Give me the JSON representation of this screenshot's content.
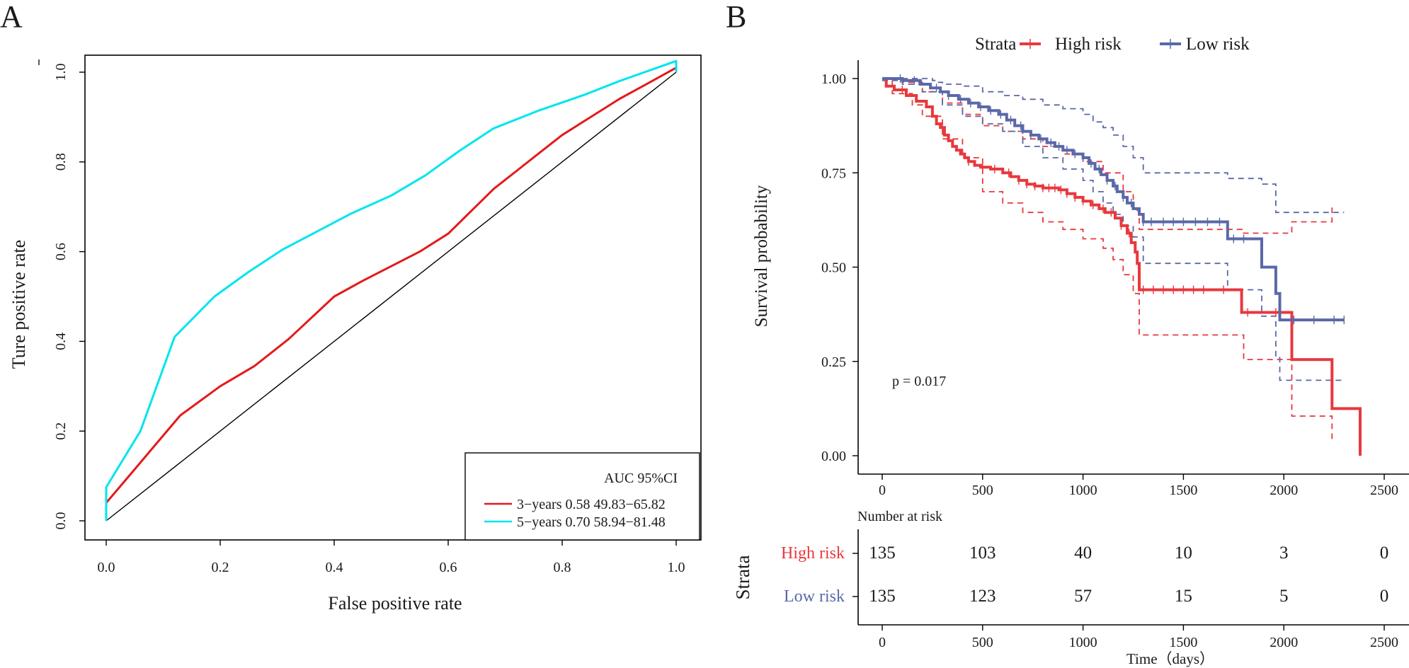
{
  "panel_a": {
    "label": "A",
    "chart_data": {
      "type": "line",
      "title": "",
      "xlabel": "False positive rate",
      "ylabel": "Ture positive rate",
      "xlim": [
        0,
        1
      ],
      "ylim": [
        0,
        1
      ],
      "xticks": [
        "0.0",
        "0.2",
        "0.4",
        "0.6",
        "0.8",
        "1.0"
      ],
      "yticks": [
        "0.0",
        "0.2",
        "0.4",
        "0.6",
        "0.8",
        "1.0"
      ],
      "legend": {
        "title": "AUC 95%CI",
        "entries": [
          "3−years 0.58 49.83−65.82",
          "5−years 0.70 58.94−81.48"
        ],
        "position": "bottom-right"
      },
      "reference_line": [
        [
          0,
          0
        ],
        [
          1,
          1
        ]
      ],
      "series": [
        {
          "name": "3-years",
          "color": "#e31a1c",
          "points": [
            [
              0,
              0.01
            ],
            [
              0,
              0.04
            ],
            [
              0.05,
              0.115
            ],
            [
              0.1,
              0.19
            ],
            [
              0.13,
              0.235
            ],
            [
              0.2,
              0.3
            ],
            [
              0.26,
              0.345
            ],
            [
              0.32,
              0.405
            ],
            [
              0.4,
              0.5
            ],
            [
              0.45,
              0.535
            ],
            [
              0.55,
              0.6
            ],
            [
              0.6,
              0.64
            ],
            [
              0.68,
              0.74
            ],
            [
              0.72,
              0.78
            ],
            [
              0.76,
              0.82
            ],
            [
              0.8,
              0.86
            ],
            [
              0.85,
              0.9
            ],
            [
              0.9,
              0.94
            ],
            [
              0.95,
              0.975
            ],
            [
              1,
              1.01
            ]
          ]
        },
        {
          "name": "5-years",
          "color": "#00e5ee",
          "points": [
            [
              0,
              0
            ],
            [
              0,
              0.075
            ],
            [
              0.06,
              0.2
            ],
            [
              0.12,
              0.41
            ],
            [
              0.19,
              0.5
            ],
            [
              0.25,
              0.555
            ],
            [
              0.31,
              0.605
            ],
            [
              0.37,
              0.645
            ],
            [
              0.43,
              0.685
            ],
            [
              0.5,
              0.725
            ],
            [
              0.56,
              0.77
            ],
            [
              0.62,
              0.825
            ],
            [
              0.68,
              0.875
            ],
            [
              0.76,
              0.915
            ],
            [
              0.84,
              0.95
            ],
            [
              0.9,
              0.98
            ],
            [
              1,
              1.025
            ],
            [
              1,
              1.0
            ]
          ]
        }
      ]
    }
  },
  "panel_b": {
    "label": "B",
    "chart_data": {
      "type": "line",
      "subtype": "kaplan-meier",
      "ylabel": "Survival probability",
      "xlabel": "Time（days）",
      "xlim": [
        -120,
        2550
      ],
      "ylim": [
        0,
        1
      ],
      "xticks": [
        0,
        500,
        1000,
        1500,
        2000,
        2500
      ],
      "yticks": [
        "0.00",
        "0.25",
        "0.50",
        "0.75",
        "1.00"
      ],
      "legend": {
        "title": "Strata",
        "entries": [
          "High risk",
          "Low risk"
        ],
        "position": "top"
      },
      "annotation": "p = 0.017",
      "series": [
        {
          "name": "High risk",
          "color": "#e8383d",
          "steps": [
            [
              0,
              1.0
            ],
            [
              20,
              0.98
            ],
            [
              60,
              0.97
            ],
            [
              120,
              0.955
            ],
            [
              170,
              0.94
            ],
            [
              220,
              0.925
            ],
            [
              250,
              0.9
            ],
            [
              270,
              0.88
            ],
            [
              290,
              0.87
            ],
            [
              310,
              0.85
            ],
            [
              330,
              0.835
            ],
            [
              350,
              0.82
            ],
            [
              370,
              0.81
            ],
            [
              390,
              0.8
            ],
            [
              410,
              0.79
            ],
            [
              430,
              0.78
            ],
            [
              460,
              0.77
            ],
            [
              490,
              0.765
            ],
            [
              540,
              0.76
            ],
            [
              600,
              0.75
            ],
            [
              640,
              0.74
            ],
            [
              680,
              0.73
            ],
            [
              720,
              0.72
            ],
            [
              760,
              0.715
            ],
            [
              800,
              0.71
            ],
            [
              880,
              0.705
            ],
            [
              920,
              0.695
            ],
            [
              960,
              0.685
            ],
            [
              1000,
              0.675
            ],
            [
              1040,
              0.665
            ],
            [
              1080,
              0.655
            ],
            [
              1110,
              0.645
            ],
            [
              1160,
              0.63
            ],
            [
              1190,
              0.61
            ],
            [
              1220,
              0.59
            ],
            [
              1240,
              0.565
            ],
            [
              1260,
              0.54
            ],
            [
              1270,
              0.51
            ],
            [
              1280,
              0.44
            ],
            [
              1790,
              0.38
            ],
            [
              2040,
              0.255
            ],
            [
              2240,
              0.125
            ],
            [
              2380,
              0.0
            ]
          ],
          "end_x": 2380,
          "censor_x": [
            100,
            300,
            430,
            500,
            560,
            630,
            680,
            720,
            760,
            800,
            830,
            860,
            890,
            920,
            960,
            1000,
            1050,
            1100,
            1140,
            1190,
            1230,
            1300,
            1350,
            1400,
            1450,
            1500,
            1550,
            1600,
            1700,
            1820,
            1960
          ],
          "upper_ci": [
            [
              0,
              1.0
            ],
            [
              100,
              0.99
            ],
            [
              200,
              0.965
            ],
            [
              300,
              0.935
            ],
            [
              400,
              0.905
            ],
            [
              500,
              0.875
            ],
            [
              600,
              0.86
            ],
            [
              700,
              0.84
            ],
            [
              800,
              0.82
            ],
            [
              900,
              0.8
            ],
            [
              1000,
              0.78
            ],
            [
              1100,
              0.75
            ],
            [
              1200,
              0.7
            ],
            [
              1250,
              0.65
            ],
            [
              1280,
              0.6
            ],
            [
              1800,
              0.59
            ],
            [
              2040,
              0.62
            ],
            [
              2240,
              0.66
            ]
          ],
          "lower_ci": [
            [
              0,
              0.995
            ],
            [
              50,
              0.96
            ],
            [
              150,
              0.93
            ],
            [
              200,
              0.9
            ],
            [
              300,
              0.84
            ],
            [
              400,
              0.79
            ],
            [
              500,
              0.7
            ],
            [
              600,
              0.67
            ],
            [
              700,
              0.645
            ],
            [
              800,
              0.62
            ],
            [
              900,
              0.6
            ],
            [
              1000,
              0.575
            ],
            [
              1100,
              0.55
            ],
            [
              1150,
              0.52
            ],
            [
              1200,
              0.48
            ],
            [
              1250,
              0.43
            ],
            [
              1280,
              0.32
            ],
            [
              1800,
              0.255
            ],
            [
              2040,
              0.105
            ],
            [
              2240,
              0.04
            ]
          ],
          "ci_end_x": 2240
        },
        {
          "name": "Low risk",
          "color": "#5a68a8",
          "steps": [
            [
              0,
              1.0
            ],
            [
              100,
              0.995
            ],
            [
              190,
              0.985
            ],
            [
              240,
              0.975
            ],
            [
              290,
              0.965
            ],
            [
              330,
              0.955
            ],
            [
              380,
              0.945
            ],
            [
              430,
              0.935
            ],
            [
              480,
              0.925
            ],
            [
              530,
              0.915
            ],
            [
              580,
              0.905
            ],
            [
              620,
              0.89
            ],
            [
              660,
              0.875
            ],
            [
              700,
              0.86
            ],
            [
              740,
              0.85
            ],
            [
              780,
              0.84
            ],
            [
              820,
              0.83
            ],
            [
              860,
              0.82
            ],
            [
              900,
              0.81
            ],
            [
              950,
              0.8
            ],
            [
              1000,
              0.79
            ],
            [
              1030,
              0.775
            ],
            [
              1060,
              0.76
            ],
            [
              1090,
              0.745
            ],
            [
              1120,
              0.73
            ],
            [
              1150,
              0.715
            ],
            [
              1170,
              0.7
            ],
            [
              1200,
              0.685
            ],
            [
              1220,
              0.67
            ],
            [
              1250,
              0.655
            ],
            [
              1280,
              0.64
            ],
            [
              1300,
              0.62
            ],
            [
              1720,
              0.575
            ],
            [
              1890,
              0.5
            ],
            [
              1960,
              0.43
            ],
            [
              1980,
              0.36
            ]
          ],
          "end_x": 2300,
          "censor_x": [
            90,
            160,
            270,
            330,
            390,
            440,
            490,
            540,
            590,
            640,
            690,
            740,
            790,
            840,
            880,
            920,
            960,
            1000,
            1040,
            1080,
            1120,
            1160,
            1200,
            1240,
            1300,
            1340,
            1400,
            1450,
            1500,
            1560,
            1620,
            1680,
            1750,
            1800,
            2050,
            2150,
            2250,
            2300
          ],
          "upper_ci": [
            [
              0,
              1.0
            ],
            [
              250,
              0.995
            ],
            [
              280,
              0.99
            ],
            [
              300,
              0.985
            ],
            [
              400,
              0.98
            ],
            [
              500,
              0.965
            ],
            [
              600,
              0.955
            ],
            [
              700,
              0.945
            ],
            [
              800,
              0.93
            ],
            [
              900,
              0.92
            ],
            [
              1000,
              0.905
            ],
            [
              1050,
              0.885
            ],
            [
              1100,
              0.87
            ],
            [
              1150,
              0.85
            ],
            [
              1200,
              0.82
            ],
            [
              1250,
              0.79
            ],
            [
              1300,
              0.75
            ],
            [
              1720,
              0.735
            ],
            [
              1890,
              0.72
            ],
            [
              1960,
              0.645
            ]
          ],
          "lower_ci": [
            [
              0,
              0.995
            ],
            [
              100,
              0.985
            ],
            [
              200,
              0.965
            ],
            [
              300,
              0.93
            ],
            [
              400,
              0.9
            ],
            [
              500,
              0.88
            ],
            [
              600,
              0.86
            ],
            [
              700,
              0.82
            ],
            [
              800,
              0.79
            ],
            [
              900,
              0.76
            ],
            [
              1000,
              0.73
            ],
            [
              1050,
              0.7
            ],
            [
              1100,
              0.67
            ],
            [
              1150,
              0.64
            ],
            [
              1200,
              0.61
            ],
            [
              1250,
              0.58
            ],
            [
              1300,
              0.51
            ],
            [
              1720,
              0.44
            ],
            [
              1890,
              0.37
            ],
            [
              1960,
              0.26
            ],
            [
              1980,
              0.2
            ]
          ],
          "ci_end_x": 2300
        }
      ],
      "risk_table": {
        "title": "Number at risk",
        "axis_title": "Strata",
        "xticks": [
          0,
          500,
          1000,
          1500,
          2000,
          2500
        ],
        "rows": [
          {
            "name": "High risk",
            "color": "#e8383d",
            "counts": [
              "135",
              "103",
              "40",
              "10",
              "3",
              "0"
            ]
          },
          {
            "name": "Low risk",
            "color": "#5a68a8",
            "counts": [
              "135",
              "123",
              "57",
              "15",
              "5",
              "0"
            ]
          }
        ]
      }
    }
  }
}
